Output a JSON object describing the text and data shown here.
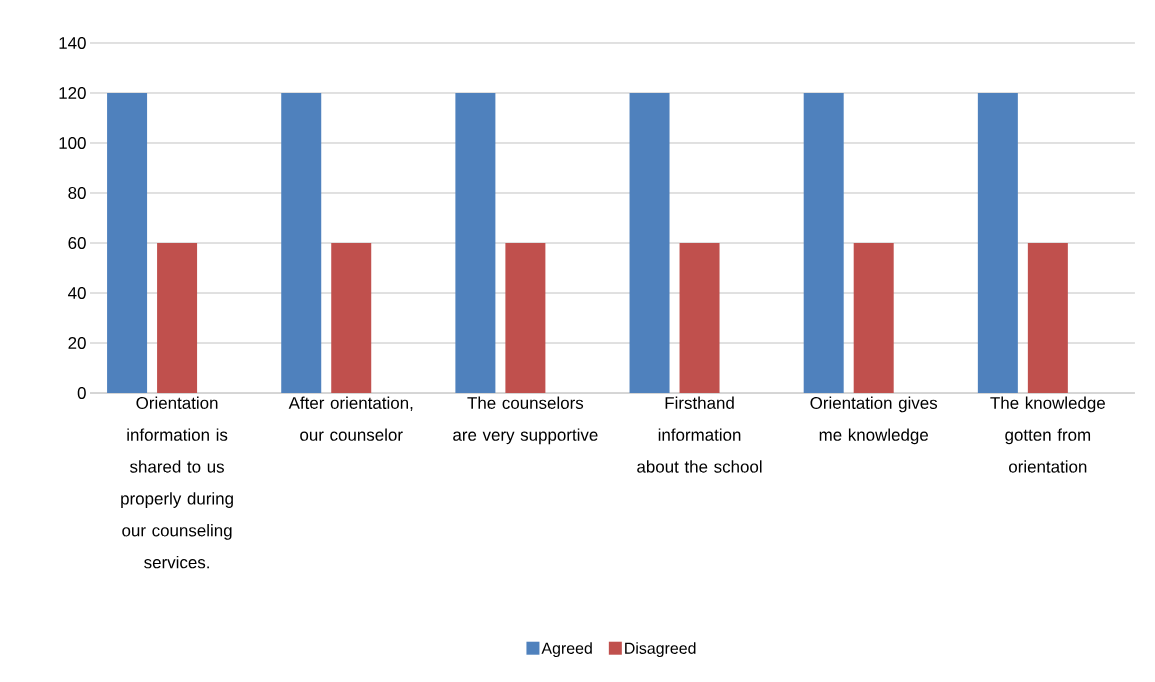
{
  "chart_data": {
    "type": "bar",
    "categories": [
      "Orientation information is shared to us properly during our counseling services.",
      "After orientation, our counselor",
      "The counselors are very supportive",
      "Firsthand information about the school",
      "Orientation gives me knowledge",
      "The knowledge gotten from orientation"
    ],
    "series": [
      {
        "name": "Agreed",
        "color": "#4f81bd",
        "values": [
          120,
          120,
          120,
          120,
          120,
          120
        ]
      },
      {
        "name": "Disagreed",
        "color": "#c0504d",
        "values": [
          60,
          60,
          60,
          60,
          60,
          60
        ]
      }
    ],
    "ylim": [
      0,
      140
    ],
    "yticks": [
      0,
      20,
      40,
      60,
      80,
      100,
      120,
      140
    ],
    "grid": "y",
    "legend": "bottom"
  }
}
